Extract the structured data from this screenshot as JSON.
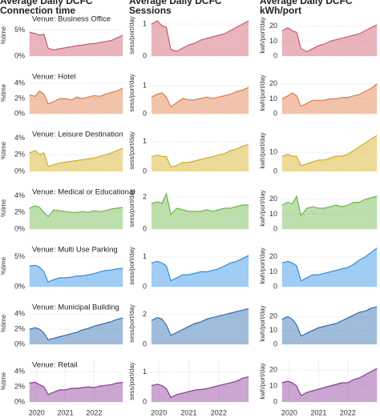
{
  "chart_data": [
    {
      "type": "area",
      "title": "Average Daily DCFC Connection time",
      "annotation": "Venue: Business Office",
      "ylabel": "%time",
      "color": "#d0586a",
      "x": [
        2019.75,
        2019.95,
        2020.1,
        2020.25,
        2020.4,
        2020.6,
        2020.8,
        2021.0,
        2021.2,
        2021.4,
        2021.6,
        2021.8,
        2022.0,
        2022.2,
        2022.4,
        2022.6,
        2022.8,
        2023.0
      ],
      "values": [
        4.6,
        4.3,
        4.0,
        4.2,
        1.5,
        1.2,
        1.4,
        1.6,
        1.8,
        2.0,
        2.1,
        2.3,
        2.4,
        2.6,
        2.8,
        3.0,
        3.5,
        4.0
      ],
      "xlim": [
        2019.7,
        2023.05
      ],
      "ylim": [
        0,
        8
      ],
      "yticks": [
        {
          "value": 0,
          "label": "0%"
        },
        {
          "value": 5,
          "label": "5%"
        }
      ]
    },
    {
      "type": "area",
      "title": "Average Daily DCFC Sessions",
      "ylabel": "sess/port/day",
      "color": "#d0586a",
      "x": [
        2019.75,
        2019.95,
        2020.1,
        2020.25,
        2020.4,
        2020.6,
        2020.8,
        2021.0,
        2021.2,
        2021.4,
        2021.6,
        2021.8,
        2022.0,
        2022.2,
        2022.4,
        2022.6,
        2022.8,
        2023.0
      ],
      "values": [
        1.0,
        1.1,
        0.95,
        0.9,
        0.2,
        0.15,
        0.25,
        0.35,
        0.4,
        0.5,
        0.55,
        0.6,
        0.65,
        0.7,
        0.8,
        0.9,
        1.0,
        1.1
      ],
      "xlim": [
        2019.7,
        2023.05
      ],
      "ylim": [
        0,
        1.3
      ],
      "yticks": [
        0,
        1
      ]
    },
    {
      "type": "area",
      "title": "Average Daily DCFC kWh/port",
      "ylabel": "kwh/port/day",
      "color": "#d0586a",
      "x": [
        2019.75,
        2019.95,
        2020.1,
        2020.25,
        2020.4,
        2020.6,
        2020.8,
        2021.0,
        2021.2,
        2021.4,
        2021.6,
        2021.8,
        2022.0,
        2022.2,
        2022.4,
        2022.6,
        2022.8,
        2023.0
      ],
      "values": [
        17,
        19,
        17,
        16,
        5,
        3,
        5,
        7,
        8,
        10,
        11,
        12,
        13,
        14,
        15,
        17,
        19,
        21
      ],
      "xlim": [
        2019.7,
        2023.05
      ],
      "ylim": [
        0,
        28
      ],
      "yticks": [
        0,
        10,
        20
      ]
    },
    {
      "type": "area",
      "annotation": "Venue: Hotel",
      "ylabel": "%time",
      "color": "#e07b45",
      "x": [
        2019.75,
        2019.95,
        2020.1,
        2020.25,
        2020.4,
        2020.6,
        2020.8,
        2021.0,
        2021.2,
        2021.4,
        2021.6,
        2021.8,
        2022.0,
        2022.2,
        2022.4,
        2022.6,
        2022.8,
        2023.0
      ],
      "values": [
        2.5,
        2.3,
        3.0,
        2.6,
        1.3,
        1.6,
        2.0,
        2.0,
        1.8,
        2.2,
        2.0,
        2.2,
        2.4,
        2.3,
        2.6,
        2.8,
        3.0,
        3.4
      ],
      "xlim": [
        2019.7,
        2023.05
      ],
      "ylim": [
        0,
        5.5
      ],
      "yticks": [
        {
          "value": 0,
          "label": "0%"
        },
        {
          "value": 2,
          "label": "2%"
        },
        {
          "value": 4,
          "label": "4%"
        }
      ]
    },
    {
      "type": "area",
      "ylabel": "sess/port/day",
      "color": "#e07b45",
      "x": [
        2019.75,
        2019.95,
        2020.1,
        2020.25,
        2020.4,
        2020.6,
        2020.8,
        2021.0,
        2021.2,
        2021.4,
        2021.6,
        2021.8,
        2022.0,
        2022.2,
        2022.4,
        2022.6,
        2022.8,
        2023.0
      ],
      "values": [
        0.6,
        0.7,
        0.75,
        0.6,
        0.25,
        0.4,
        0.55,
        0.5,
        0.5,
        0.55,
        0.6,
        0.55,
        0.6,
        0.65,
        0.7,
        0.8,
        0.85,
        0.95
      ],
      "xlim": [
        2019.7,
        2023.05
      ],
      "ylim": [
        0,
        1.5
      ],
      "yticks": [
        0,
        1
      ]
    },
    {
      "type": "area",
      "ylabel": "kwh/port/day",
      "color": "#e07b45",
      "x": [
        2019.75,
        2019.95,
        2020.1,
        2020.25,
        2020.4,
        2020.6,
        2020.8,
        2021.0,
        2021.2,
        2021.4,
        2021.6,
        2021.8,
        2022.0,
        2022.2,
        2022.4,
        2022.6,
        2022.8,
        2023.0
      ],
      "values": [
        10,
        12,
        14,
        12,
        5,
        7,
        9,
        9,
        9,
        10,
        10,
        11,
        11,
        12,
        13,
        15,
        17,
        20
      ],
      "xlim": [
        2019.7,
        2023.05
      ],
      "ylim": [
        0,
        28
      ],
      "yticks": [
        0,
        10,
        20
      ]
    },
    {
      "type": "area",
      "annotation": "Venue: Leisure Destination",
      "ylabel": "%time",
      "color": "#d4ad1c",
      "x": [
        2019.75,
        2019.95,
        2020.1,
        2020.25,
        2020.4,
        2020.6,
        2020.8,
        2021.0,
        2021.2,
        2021.4,
        2021.6,
        2021.8,
        2022.0,
        2022.2,
        2022.4,
        2022.6,
        2022.8,
        2023.0
      ],
      "values": [
        2.2,
        2.5,
        2.0,
        2.2,
        0.6,
        0.8,
        1.0,
        1.1,
        1.2,
        1.3,
        1.4,
        1.5,
        1.6,
        1.8,
        2.0,
        2.2,
        2.5,
        2.8
      ],
      "xlim": [
        2019.7,
        2023.05
      ],
      "ylim": [
        0,
        5
      ],
      "yticks": [
        {
          "value": 0,
          "label": "0%"
        },
        {
          "value": 2,
          "label": "2%"
        },
        {
          "value": 4,
          "label": "4%"
        }
      ]
    },
    {
      "type": "area",
      "ylabel": "sess/port/day",
      "color": "#d4ad1c",
      "x": [
        2019.75,
        2019.95,
        2020.1,
        2020.25,
        2020.4,
        2020.6,
        2020.8,
        2021.0,
        2021.2,
        2021.4,
        2021.6,
        2021.8,
        2022.0,
        2022.2,
        2022.4,
        2022.6,
        2022.8,
        2023.0
      ],
      "values": [
        0.5,
        0.55,
        0.5,
        0.5,
        0.15,
        0.2,
        0.3,
        0.3,
        0.35,
        0.4,
        0.45,
        0.5,
        0.55,
        0.6,
        0.7,
        0.75,
        0.85,
        0.9
      ],
      "xlim": [
        2019.7,
        2023.05
      ],
      "ylim": [
        0,
        1.4
      ],
      "yticks": [
        0,
        1
      ]
    },
    {
      "type": "area",
      "ylabel": "kwh/port/day",
      "color": "#d4ad1c",
      "x": [
        2019.75,
        2019.95,
        2020.1,
        2020.25,
        2020.4,
        2020.6,
        2020.8,
        2021.0,
        2021.2,
        2021.4,
        2021.6,
        2021.8,
        2022.0,
        2022.2,
        2022.4,
        2022.6,
        2022.8,
        2023.0
      ],
      "values": [
        8,
        9,
        8,
        8,
        3,
        4,
        5,
        6,
        6,
        7,
        8,
        8,
        9,
        11,
        13,
        15,
        17,
        19
      ],
      "xlim": [
        2019.7,
        2023.05
      ],
      "ylim": [
        0,
        22
      ],
      "yticks": [
        0,
        10
      ]
    },
    {
      "type": "area",
      "annotation": "Venue: Medical or Educational",
      "ylabel": "%time",
      "color": "#6cb84a",
      "x": [
        2019.75,
        2019.95,
        2020.1,
        2020.25,
        2020.4,
        2020.6,
        2020.8,
        2021.0,
        2021.2,
        2021.4,
        2021.6,
        2021.8,
        2022.0,
        2022.2,
        2022.4,
        2022.6,
        2022.8,
        2023.0
      ],
      "values": [
        2.5,
        2.8,
        2.6,
        2.0,
        1.5,
        2.3,
        2.2,
        2.1,
        2.0,
        2.0,
        2.1,
        2.0,
        2.2,
        2.1,
        2.2,
        2.4,
        2.5,
        2.6
      ],
      "xlim": [
        2019.7,
        2023.05
      ],
      "ylim": [
        0,
        5
      ],
      "yticks": [
        {
          "value": 0,
          "label": "0%"
        },
        {
          "value": 2,
          "label": "2%"
        },
        {
          "value": 4,
          "label": "4%"
        }
      ]
    },
    {
      "type": "area",
      "ylabel": "sess/port/day",
      "color": "#6cb84a",
      "x": [
        2019.75,
        2019.95,
        2020.1,
        2020.25,
        2020.4,
        2020.6,
        2020.8,
        2021.0,
        2021.2,
        2021.4,
        2021.6,
        2021.8,
        2022.0,
        2022.2,
        2022.4,
        2022.6,
        2022.8,
        2023.0
      ],
      "values": [
        1.6,
        1.7,
        1.6,
        2.2,
        0.9,
        1.3,
        1.2,
        1.1,
        1.1,
        1.1,
        1.2,
        1.1,
        1.2,
        1.3,
        1.3,
        1.4,
        1.5,
        1.5
      ],
      "xlim": [
        2019.7,
        2023.05
      ],
      "ylim": [
        0,
        2.6
      ],
      "yticks": [
        0,
        2
      ]
    },
    {
      "type": "area",
      "ylabel": "kwh/port/day",
      "color": "#6cb84a",
      "x": [
        2019.75,
        2019.95,
        2020.1,
        2020.25,
        2020.4,
        2020.6,
        2020.8,
        2021.0,
        2021.2,
        2021.4,
        2021.6,
        2021.8,
        2022.0,
        2022.2,
        2022.4,
        2022.6,
        2022.8,
        2023.0
      ],
      "values": [
        16,
        18,
        17,
        22,
        9,
        14,
        15,
        14,
        14,
        15,
        16,
        15,
        16,
        18,
        18,
        20,
        21,
        22
      ],
      "xlim": [
        2019.7,
        2023.05
      ],
      "ylim": [
        0,
        28
      ],
      "yticks": [
        0,
        10,
        20
      ]
    },
    {
      "type": "area",
      "annotation": "Venue: Multi Use Parking",
      "ylabel": "%time",
      "color": "#2f8de4",
      "x": [
        2019.75,
        2019.95,
        2020.1,
        2020.25,
        2020.4,
        2020.6,
        2020.8,
        2021.0,
        2021.2,
        2021.4,
        2021.6,
        2021.8,
        2022.0,
        2022.2,
        2022.4,
        2022.6,
        2022.8,
        2023.0
      ],
      "values": [
        3.5,
        3.6,
        3.3,
        2.5,
        0.8,
        1.2,
        1.5,
        1.5,
        1.6,
        1.8,
        1.8,
        2.0,
        2.2,
        2.5,
        2.7,
        2.8,
        3.0,
        3.1
      ],
      "xlim": [
        2019.7,
        2023.05
      ],
      "ylim": [
        0,
        7
      ],
      "yticks": [
        {
          "value": 0,
          "label": "0%"
        },
        {
          "value": 5,
          "label": "5%"
        }
      ]
    },
    {
      "type": "area",
      "ylabel": "sess/port/day",
      "color": "#2f8de4",
      "x": [
        2019.75,
        2019.95,
        2020.1,
        2020.25,
        2020.4,
        2020.6,
        2020.8,
        2021.0,
        2021.2,
        2021.4,
        2021.6,
        2021.8,
        2022.0,
        2022.2,
        2022.4,
        2022.6,
        2022.8,
        2023.0
      ],
      "values": [
        0.8,
        0.85,
        0.8,
        0.7,
        0.2,
        0.3,
        0.4,
        0.4,
        0.45,
        0.5,
        0.5,
        0.55,
        0.6,
        0.7,
        0.8,
        0.85,
        0.95,
        1.05
      ],
      "xlim": [
        2019.7,
        2023.05
      ],
      "ylim": [
        0,
        1.4
      ],
      "yticks": [
        0,
        1
      ]
    },
    {
      "type": "area",
      "ylabel": "kwh/port/day",
      "color": "#2f8de4",
      "x": [
        2019.75,
        2019.95,
        2020.1,
        2020.25,
        2020.4,
        2020.6,
        2020.8,
        2021.0,
        2021.2,
        2021.4,
        2021.6,
        2021.8,
        2022.0,
        2022.2,
        2022.4,
        2022.6,
        2022.8,
        2023.0
      ],
      "values": [
        16,
        17,
        16,
        14,
        4,
        6,
        8,
        8,
        9,
        10,
        11,
        12,
        13,
        15,
        18,
        20,
        23,
        26
      ],
      "xlim": [
        2019.7,
        2023.05
      ],
      "ylim": [
        0,
        28
      ],
      "yticks": [
        0,
        10,
        20
      ]
    },
    {
      "type": "area",
      "annotation": "Venue: Municipal Building",
      "ylabel": "%time",
      "color": "#2a6cb0",
      "x": [
        2019.75,
        2019.95,
        2020.1,
        2020.25,
        2020.4,
        2020.6,
        2020.8,
        2021.0,
        2021.2,
        2021.4,
        2021.6,
        2021.8,
        2022.0,
        2022.2,
        2022.4,
        2022.6,
        2022.8,
        2023.0
      ],
      "values": [
        2.0,
        2.2,
        2.0,
        1.5,
        0.6,
        0.8,
        1.0,
        1.2,
        1.4,
        1.6,
        1.9,
        2.1,
        2.4,
        2.6,
        2.8,
        3.0,
        3.3,
        3.5
      ],
      "xlim": [
        2019.7,
        2023.05
      ],
      "ylim": [
        0,
        5.5
      ],
      "yticks": [
        {
          "value": 0,
          "label": "0%"
        },
        {
          "value": 2,
          "label": "2%"
        },
        {
          "value": 4,
          "label": "4%"
        }
      ]
    },
    {
      "type": "area",
      "ylabel": "sess/port/day",
      "color": "#2a6cb0",
      "x": [
        2019.75,
        2019.95,
        2020.1,
        2020.25,
        2020.4,
        2020.6,
        2020.8,
        2021.0,
        2021.2,
        2021.4,
        2021.6,
        2021.8,
        2022.0,
        2022.2,
        2022.4,
        2022.6,
        2022.8,
        2023.0
      ],
      "values": [
        1.6,
        1.8,
        1.7,
        1.3,
        0.6,
        0.8,
        1.0,
        1.2,
        1.4,
        1.5,
        1.7,
        1.8,
        1.9,
        2.0,
        2.1,
        2.2,
        2.3,
        2.4
      ],
      "xlim": [
        2019.7,
        2023.05
      ],
      "ylim": [
        0,
        2.8
      ],
      "yticks": [
        0,
        2
      ]
    },
    {
      "type": "area",
      "ylabel": "kwh/port/day",
      "color": "#2a6cb0",
      "x": [
        2019.75,
        2019.95,
        2020.1,
        2020.25,
        2020.4,
        2020.6,
        2020.8,
        2021.0,
        2021.2,
        2021.4,
        2021.6,
        2021.8,
        2022.0,
        2022.2,
        2022.4,
        2022.6,
        2022.8,
        2023.0
      ],
      "values": [
        18,
        20,
        18,
        14,
        6,
        8,
        10,
        12,
        13,
        14,
        15,
        17,
        19,
        21,
        23,
        24,
        26,
        27
      ],
      "xlim": [
        2019.7,
        2023.05
      ],
      "ylim": [
        0,
        30
      ],
      "yticks": [
        0,
        10,
        20
      ]
    },
    {
      "type": "area",
      "annotation": "Venue: Retail",
      "ylabel": "%time",
      "color": "#8b3a99",
      "x": [
        2019.75,
        2019.95,
        2020.1,
        2020.25,
        2020.4,
        2020.6,
        2020.8,
        2021.0,
        2021.2,
        2021.4,
        2021.6,
        2021.8,
        2022.0,
        2022.2,
        2022.4,
        2022.6,
        2022.8,
        2023.0
      ],
      "values": [
        2.5,
        2.6,
        2.3,
        2.0,
        1.0,
        1.3,
        1.6,
        1.6,
        1.8,
        1.8,
        1.9,
        2.0,
        1.9,
        2.1,
        2.2,
        2.3,
        2.5,
        2.6
      ],
      "xlim": [
        2019.7,
        2023.05
      ],
      "ylim": [
        0,
        5.5
      ],
      "yticks": [
        {
          "value": 0,
          "label": "0%"
        },
        {
          "value": 2,
          "label": "2%"
        },
        {
          "value": 4,
          "label": "4%"
        }
      ],
      "xticks": [
        2020,
        2021,
        2022
      ]
    },
    {
      "type": "area",
      "ylabel": "sess/port/day",
      "color": "#8b3a99",
      "x": [
        2019.75,
        2019.95,
        2020.1,
        2020.25,
        2020.4,
        2020.6,
        2020.8,
        2021.0,
        2021.2,
        2021.4,
        2021.6,
        2021.8,
        2022.0,
        2022.2,
        2022.4,
        2022.6,
        2022.8,
        2023.0
      ],
      "values": [
        0.55,
        0.6,
        0.55,
        0.45,
        0.15,
        0.25,
        0.3,
        0.35,
        0.4,
        0.42,
        0.45,
        0.5,
        0.55,
        0.6,
        0.65,
        0.7,
        0.8,
        0.85
      ],
      "xlim": [
        2019.7,
        2023.05
      ],
      "ylim": [
        0,
        1.4
      ],
      "yticks": [
        0,
        1
      ],
      "xticks": [
        2020,
        2021,
        2022
      ]
    },
    {
      "type": "area",
      "ylabel": "kwh/port/day",
      "color": "#8b3a99",
      "x": [
        2019.75,
        2019.95,
        2020.1,
        2020.25,
        2020.4,
        2020.6,
        2020.8,
        2021.0,
        2021.2,
        2021.4,
        2021.6,
        2021.8,
        2022.0,
        2022.2,
        2022.4,
        2022.6,
        2022.8,
        2023.0
      ],
      "values": [
        12,
        13,
        12,
        10,
        4,
        6,
        7,
        8,
        9,
        10,
        11,
        12,
        12,
        14,
        15,
        17,
        19,
        21
      ],
      "xlim": [
        2019.7,
        2023.05
      ],
      "ylim": [
        0,
        26
      ],
      "yticks": [
        0,
        10,
        20
      ],
      "xticks": [
        2020,
        2021,
        2022
      ]
    }
  ]
}
